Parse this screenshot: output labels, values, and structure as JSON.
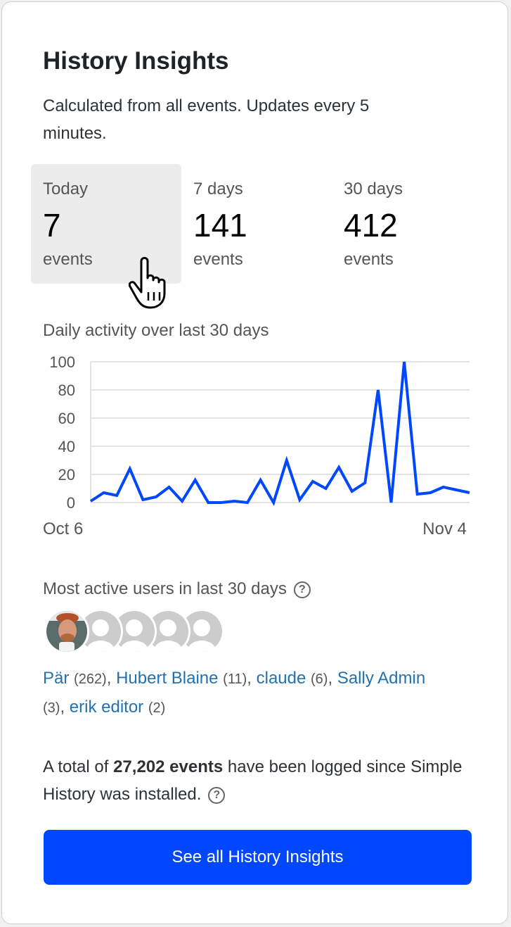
{
  "title": "History Insights",
  "description": "Calculated from all events. Updates every 5 minutes.",
  "stats": [
    {
      "label": "Today",
      "value": "7",
      "unit": "events",
      "active": true
    },
    {
      "label": "7 days",
      "value": "141",
      "unit": "events"
    },
    {
      "label": "30 days",
      "value": "412",
      "unit": "events"
    }
  ],
  "chart_title": "Daily activity over last 30 days",
  "chart_data": {
    "type": "line",
    "x_start_label": "Oct 6",
    "x_end_label": "Nov 4",
    "values": [
      1,
      7,
      5,
      24,
      2,
      4,
      11,
      1,
      16,
      0,
      0,
      1,
      0,
      16,
      0,
      30,
      2,
      15,
      10,
      25,
      8,
      14,
      80,
      0,
      100,
      6,
      7,
      11,
      9,
      7
    ],
    "ylim": [
      0,
      100
    ],
    "yticks": [
      0,
      20,
      40,
      60,
      80,
      100
    ],
    "grid": true,
    "color": "#0047ff"
  },
  "users_title": "Most active users in last 30 days",
  "users": [
    {
      "name": "Pär",
      "count": "(262)"
    },
    {
      "name": "Hubert Blaine",
      "count": "(11)"
    },
    {
      "name": "claude",
      "count": "(6)"
    },
    {
      "name": "Sally Admin",
      "count": "(3)"
    },
    {
      "name": "erik editor",
      "count": "(2)"
    }
  ],
  "total": {
    "prefix": "A total of ",
    "bold": "27,202 events",
    "suffix": " have been logged since Simple History was installed."
  },
  "button_label": "See all History Insights",
  "help_glyph": "?"
}
